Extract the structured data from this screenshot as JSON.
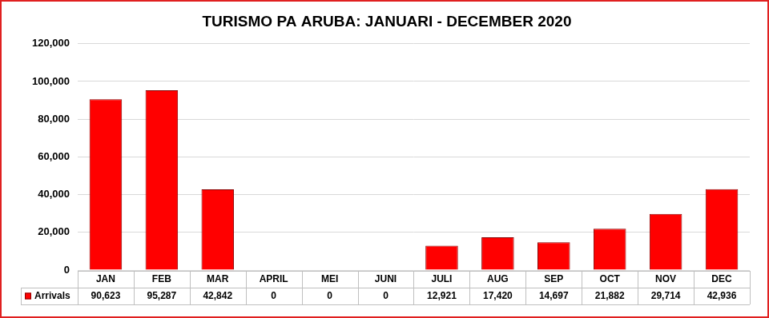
{
  "chart_data": {
    "type": "bar",
    "title": "TURISMO PA ARUBA: JANUARI - DECEMBER 2020",
    "categories": [
      "JAN",
      "FEB",
      "MAR",
      "APRIL",
      "MEI",
      "JUNI",
      "JULI",
      "AUG",
      "SEP",
      "OCT",
      "NOV",
      "DEC"
    ],
    "series": [
      {
        "name": "Arrivals",
        "color": "#ff0000",
        "values": [
          90623,
          95287,
          42842,
          0,
          0,
          0,
          12921,
          17420,
          14697,
          21882,
          29714,
          42936
        ],
        "value_labels": [
          "90,623",
          "95,287",
          "42,842",
          "0",
          "0",
          "0",
          "12,921",
          "17,420",
          "14,697",
          "21,882",
          "29,714",
          "42,936"
        ]
      }
    ],
    "ylim": [
      0,
      120000
    ],
    "yticks": [
      0,
      {
        "value": 20000,
        "label": "20,000"
      },
      {
        "value": 40000,
        "label": "40,000"
      },
      {
        "value": 60000,
        "label": "60,000"
      },
      {
        "value": 80000,
        "label": "80,000"
      },
      {
        "value": 100000,
        "label": "100,000"
      },
      {
        "value": 120000,
        "label": "120,000"
      }
    ],
    "grid": true,
    "data_labels": true
  }
}
